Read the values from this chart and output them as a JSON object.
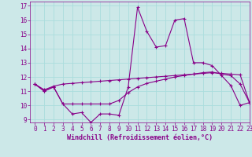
{
  "xlabel": "Windchill (Refroidissement éolien,°C)",
  "xlim": [
    -0.5,
    23
  ],
  "ylim": [
    8.8,
    17.3
  ],
  "yticks": [
    9,
    10,
    11,
    12,
    13,
    14,
    15,
    16,
    17
  ],
  "xticks": [
    0,
    1,
    2,
    3,
    4,
    5,
    6,
    7,
    8,
    9,
    10,
    11,
    12,
    13,
    14,
    15,
    16,
    17,
    18,
    19,
    20,
    21,
    22,
    23
  ],
  "background_color": "#cce8e8",
  "line_color": "#880088",
  "grid_color": "#aadddd",
  "series": {
    "line1": [
      11.5,
      11.0,
      11.3,
      10.1,
      9.4,
      9.5,
      8.8,
      9.4,
      9.4,
      9.3,
      11.3,
      16.9,
      15.2,
      14.1,
      14.2,
      16.0,
      16.1,
      13.0,
      13.0,
      12.8,
      12.1,
      11.4,
      10.0,
      10.2
    ],
    "line2": [
      11.5,
      11.0,
      11.3,
      10.1,
      10.1,
      10.1,
      10.1,
      10.1,
      10.1,
      10.35,
      10.9,
      11.3,
      11.55,
      11.7,
      11.85,
      12.0,
      12.1,
      12.2,
      12.3,
      12.35,
      12.2,
      12.1,
      11.5,
      10.2
    ],
    "line3": [
      11.5,
      11.1,
      11.35,
      11.5,
      11.55,
      11.6,
      11.65,
      11.7,
      11.75,
      11.8,
      11.85,
      11.9,
      11.95,
      12.0,
      12.05,
      12.1,
      12.15,
      12.2,
      12.25,
      12.3,
      12.25,
      12.2,
      12.15,
      10.2
    ]
  },
  "marker": "+",
  "markersize": 3,
  "linewidth": 0.8,
  "fontsize_xlabel": 6,
  "tick_fontsize": 5.5
}
